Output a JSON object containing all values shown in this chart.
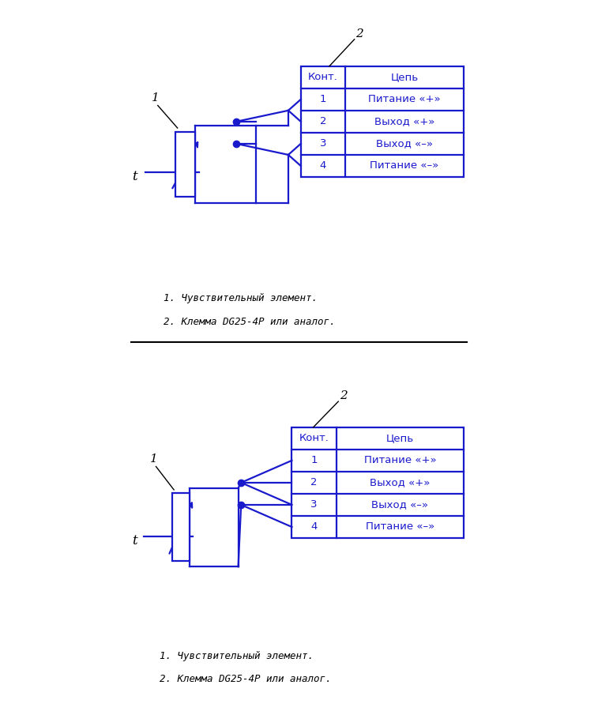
{
  "bg_color": "#ffffff",
  "line_color": "#1a1acd",
  "black_color": "#000000",
  "lw": 1.6,
  "diagram1": {
    "label1": "1",
    "label2": "2",
    "label_t": "t",
    "rows": [
      "1",
      "2",
      "3",
      "4"
    ],
    "col1_header": "Конт.",
    "col2_header": "Цепь",
    "col2_values": [
      "Питание «+»",
      "Выход «+»",
      "Выход «–»",
      "Питание «–»"
    ],
    "note1": "1. Чувствительный элемент.",
    "note2": "2. Клемма DG25-4P или аналог."
  },
  "diagram2": {
    "label1": "1",
    "label2": "2",
    "label_t": "t",
    "rows": [
      "1",
      "2",
      "3",
      "4"
    ],
    "col1_header": "Конт.",
    "col2_header": "Цепь",
    "col2_values": [
      "Питание «+»",
      "Выход «+»",
      "Выход «–»",
      "Питание «–»"
    ],
    "note1": "1. Чувствительный элемент.",
    "note2": "2. Клемма DG25-4P или аналог."
  }
}
